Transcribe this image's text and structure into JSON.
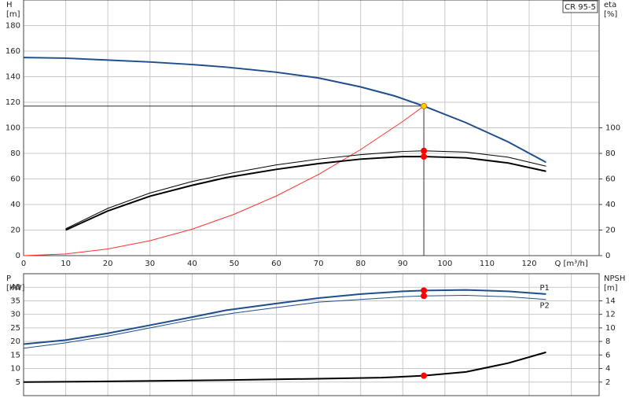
{
  "chart_data": [
    {
      "type": "line",
      "title": "CR 95-5",
      "y_label": "H",
      "y_unit": "[m]",
      "y2_label": "eta",
      "y2_unit": "[%]",
      "xlim": [
        0,
        136.6
      ],
      "xticks": [
        0,
        10,
        20,
        30,
        40,
        50,
        60,
        70,
        80,
        90,
        100,
        110,
        120,
        {
          "value": 130,
          "label": "Q [m³/h]"
        }
      ],
      "ylim": [
        0,
        200
      ],
      "yticks": [
        0,
        20,
        40,
        60,
        80,
        100,
        120,
        140,
        160,
        180
      ],
      "y2lim": [
        0,
        200
      ],
      "y2ticks": [
        0,
        20,
        40,
        60,
        80,
        100
      ],
      "grid": true,
      "series": [
        {
          "color": "#1f4e8c",
          "width": 2,
          "x": [
            0,
            10,
            20,
            30,
            40,
            48,
            60,
            70,
            80,
            88,
            95,
            105,
            115,
            124
          ],
          "values": [
            155,
            154.5,
            153,
            151.5,
            149.5,
            147.5,
            143.5,
            139,
            132,
            125,
            117,
            104,
            89,
            73
          ]
        },
        {
          "color": "#ff3030",
          "width": 1,
          "x": [
            0,
            10,
            20,
            30,
            40,
            50,
            60,
            70,
            80,
            90,
            95
          ],
          "values": [
            0,
            1.3,
            5.2,
            11.7,
            20.7,
            32.4,
            46.7,
            63.5,
            83,
            105,
            117
          ]
        },
        {
          "color": "#000000",
          "width": 1,
          "axis": "y2",
          "x": [
            10,
            20,
            30,
            40,
            50,
            60,
            70,
            80,
            90,
            95,
            105,
            115,
            124
          ],
          "values": [
            21,
            37,
            49,
            58,
            65,
            71,
            75.5,
            79,
            81.5,
            82,
            81,
            77,
            70
          ]
        },
        {
          "color": "#000000",
          "width": 2,
          "axis": "y2",
          "x": [
            10,
            20,
            30,
            40,
            48,
            60,
            70,
            80,
            90,
            95,
            105,
            115,
            124
          ],
          "values": [
            20,
            35,
            46.5,
            55,
            61,
            67.5,
            72,
            75.5,
            77.5,
            77.5,
            76.5,
            72.5,
            66
          ]
        }
      ],
      "guides": [
        {
          "x": [
            0,
            95
          ],
          "values": [
            117,
            117
          ]
        },
        {
          "x": [
            95,
            95
          ],
          "values": [
            117,
            0
          ]
        }
      ],
      "markers": [
        {
          "x": 95,
          "y": 117,
          "color": "#ffcc00"
        },
        {
          "x": 95,
          "y": 82,
          "axis": "y2",
          "color": "#ff0000"
        },
        {
          "x": 95,
          "y": 77.5,
          "axis": "y2",
          "color": "#ff0000"
        }
      ]
    },
    {
      "type": "line",
      "y_label": "P",
      "y_unit": "[kW]",
      "y2_label": "NPSH",
      "y2_unit": "[m]",
      "xlim": [
        0,
        136.6
      ],
      "ylim": [
        0,
        45
      ],
      "yticks": [
        5,
        10,
        15,
        20,
        25,
        30,
        35,
        40
      ],
      "y2lim": [
        0,
        18
      ],
      "y2ticks": [
        2,
        4,
        6,
        8,
        10,
        12,
        14
      ],
      "grid": true,
      "series": [
        {
          "name": "P1",
          "color": "#1f4e8c",
          "width": 2,
          "x": [
            0,
            10,
            20,
            30,
            40,
            48,
            60,
            70,
            80,
            90,
            95,
            105,
            115,
            124
          ],
          "values": [
            19,
            20.5,
            23,
            26,
            29,
            31.5,
            34,
            36,
            37.5,
            38.5,
            38.8,
            39,
            38.5,
            37.5
          ]
        },
        {
          "name": "P2",
          "color": "#1f4e8c",
          "width": 1,
          "x": [
            0,
            10,
            20,
            30,
            40,
            50,
            60,
            70,
            80,
            90,
            95,
            105,
            115,
            124
          ],
          "values": [
            17.5,
            19.5,
            22,
            25,
            28,
            30.5,
            32.5,
            34.5,
            35.5,
            36.5,
            36.8,
            37,
            36.5,
            35.5
          ]
        },
        {
          "color": "#000000",
          "width": 2,
          "axis": "y2",
          "x": [
            0,
            20,
            48,
            70,
            85,
            95,
            105,
            115,
            124
          ],
          "values": [
            2,
            2.1,
            2.3,
            2.5,
            2.65,
            2.94,
            3.5,
            4.8,
            6.4
          ]
        }
      ],
      "markers": [
        {
          "x": 95,
          "y": 38.8,
          "color": "#ff0000"
        },
        {
          "x": 95,
          "y": 36.8,
          "color": "#ff0000"
        },
        {
          "x": 95,
          "y": 2.94,
          "axis": "y2",
          "color": "#ff0000"
        }
      ]
    }
  ]
}
